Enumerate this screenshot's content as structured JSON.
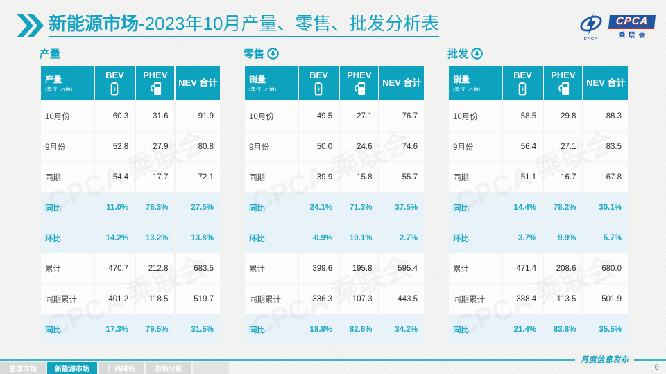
{
  "header": {
    "title_main": "新能源市场",
    "title_sub": "-2023年10月产量、零售、批发分析表",
    "logo": {
      "org_abbr": "CPCA",
      "org_cn": "乘联会",
      "mark_sub": "CPCA"
    }
  },
  "colors": {
    "accent_teal": "#0DA2BE",
    "highlight_bg": "#E7F3F8",
    "highlight_text": "#1BA7C6",
    "logo_blue": "#1C57A5",
    "logo_red": "#D42B28"
  },
  "watermark_text": "CPCA 乘联会",
  "tables": [
    {
      "section_title": "产量",
      "trend_icon": "",
      "corner_label": "产量",
      "corner_unit": "(单位: 万辆)",
      "columns": [
        "BEV",
        "PHEV",
        "NEV 合计"
      ],
      "rows": [
        {
          "label": "10月份",
          "values": [
            "60.3",
            "31.6",
            "91.9"
          ],
          "highlight": false
        },
        {
          "label": "9月份",
          "values": [
            "52.8",
            "27.9",
            "80.8"
          ],
          "highlight": false
        },
        {
          "label": "同期",
          "values": [
            "54.4",
            "17.7",
            "72.1"
          ],
          "highlight": false
        },
        {
          "label": "同比",
          "values": [
            "11.0%",
            "78.3%",
            "27.5%"
          ],
          "highlight": true
        },
        {
          "label": "环比",
          "values": [
            "14.2%",
            "13.2%",
            "13.8%"
          ],
          "highlight": true
        },
        {
          "label": "累计",
          "values": [
            "470.7",
            "212.8",
            "683.5"
          ],
          "highlight": false
        },
        {
          "label": "同期累计",
          "values": [
            "401.2",
            "118.5",
            "519.7"
          ],
          "highlight": false
        },
        {
          "label": "同比",
          "values": [
            "17.3%",
            "79.5%",
            "31.5%"
          ],
          "highlight": true
        }
      ]
    },
    {
      "section_title": "零售",
      "trend_icon": "circle-down-arrow",
      "corner_label": "销量",
      "corner_unit": "(单位: 万辆)",
      "columns": [
        "BEV",
        "PHEV",
        "NEV 合计"
      ],
      "rows": [
        {
          "label": "10月份",
          "values": [
            "49.5",
            "27.1",
            "76.7"
          ],
          "highlight": false
        },
        {
          "label": "9月份",
          "values": [
            "50.0",
            "24.6",
            "74.6"
          ],
          "highlight": false
        },
        {
          "label": "同期",
          "values": [
            "39.9",
            "15.8",
            "55.7"
          ],
          "highlight": false
        },
        {
          "label": "同比",
          "values": [
            "24.1%",
            "71.3%",
            "37.5%"
          ],
          "highlight": true
        },
        {
          "label": "环比",
          "values": [
            "-0.9%",
            "10.1%",
            "2.7%"
          ],
          "highlight": true
        },
        {
          "label": "累计",
          "values": [
            "399.6",
            "195.8",
            "595.4"
          ],
          "highlight": false
        },
        {
          "label": "同期累计",
          "values": [
            "336.3",
            "107.3",
            "443.5"
          ],
          "highlight": false
        },
        {
          "label": "同比",
          "values": [
            "18.8%",
            "82.6%",
            "34.2%"
          ],
          "highlight": true
        }
      ]
    },
    {
      "section_title": "批发",
      "trend_icon": "circle-down-arrow",
      "corner_label": "销量",
      "corner_unit": "(单位: 万辆)",
      "columns": [
        "BEV",
        "PHEV",
        "NEV 合计"
      ],
      "rows": [
        {
          "label": "10月份",
          "values": [
            "58.5",
            "29.8",
            "88.3"
          ],
          "highlight": false
        },
        {
          "label": "9月份",
          "values": [
            "56.4",
            "27.1",
            "83.5"
          ],
          "highlight": false
        },
        {
          "label": "同期",
          "values": [
            "51.1",
            "16.7",
            "67.8"
          ],
          "highlight": false
        },
        {
          "label": "同比",
          "values": [
            "14.4%",
            "78.2%",
            "30.1%"
          ],
          "highlight": true
        },
        {
          "label": "环比",
          "values": [
            "3.7%",
            "9.9%",
            "5.7%"
          ],
          "highlight": true
        },
        {
          "label": "累计",
          "values": [
            "471.4",
            "208.6",
            "680.0"
          ],
          "highlight": false
        },
        {
          "label": "同期累计",
          "values": [
            "388.4",
            "113.5",
            "501.9"
          ],
          "highlight": false
        },
        {
          "label": "同比",
          "values": [
            "21.4%",
            "83.8%",
            "35.5%"
          ],
          "highlight": true
        }
      ]
    }
  ],
  "footer": {
    "tabs": [
      {
        "label": "总体市场",
        "active": false
      },
      {
        "label": "新能源市场",
        "active": true
      },
      {
        "label": "厂商排名",
        "active": false
      },
      {
        "label": "市场分析",
        "active": false
      }
    ],
    "note": "月度信息发布",
    "page_number": "6"
  }
}
